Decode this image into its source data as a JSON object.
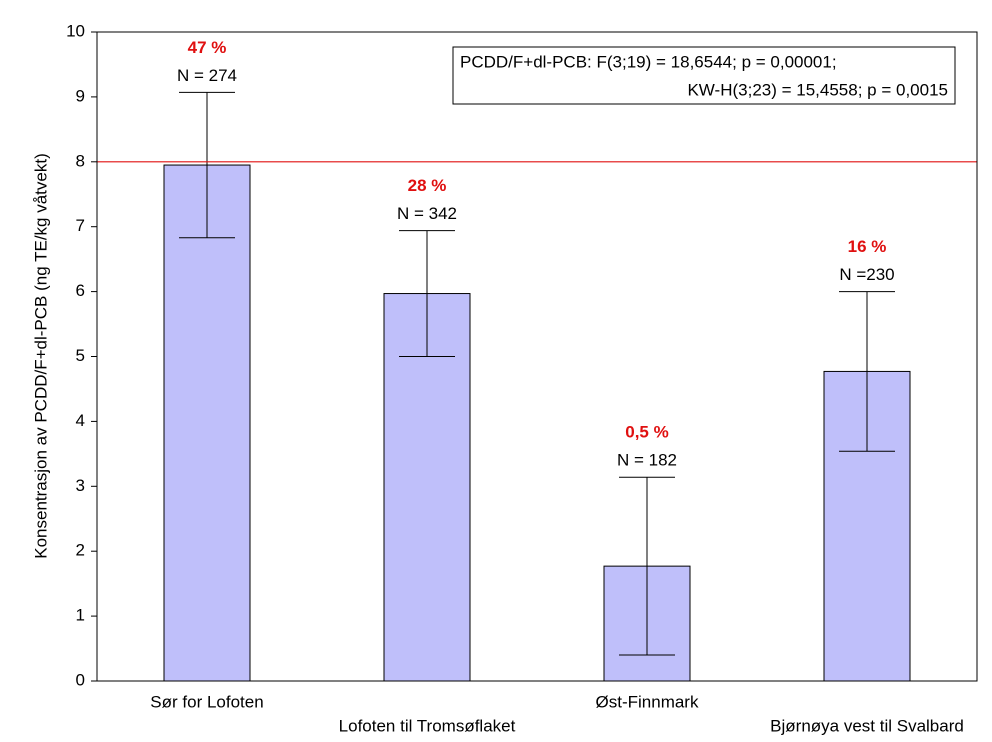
{
  "chart_data": {
    "type": "bar",
    "y_label": "Konsentrasjon av PCDD/F+dl-PCB (ng TE/kg våtvekt)",
    "categories": [
      "Sør for Lofoten",
      "Lofoten til Tromsøflaket",
      "Øst-Finnmark",
      "Bjørnøya vest til Svalbard"
    ],
    "values": [
      7.95,
      5.97,
      1.77,
      4.77
    ],
    "errors": [
      1.12,
      0.97,
      1.37,
      1.23
    ],
    "percent_labels": [
      "47 %",
      "28 %",
      "0,5 %",
      "16 %"
    ],
    "n_labels": [
      "N = 274",
      "N = 342",
      "N = 182",
      "N =230"
    ],
    "color": "#bfbffa",
    "reference_line": 8,
    "reference_color": "#e01010",
    "stats_text": [
      "PCDD/F+dl-PCB: F(3;19) = 18,6544; p = 0,00001;",
      "KW-H(3;23) = 15,4558; p = 0,0015"
    ],
    "ylim": [
      0,
      10
    ],
    "yticks": [
      0,
      1,
      2,
      3,
      4,
      5,
      6,
      7,
      8,
      9,
      10
    ]
  }
}
